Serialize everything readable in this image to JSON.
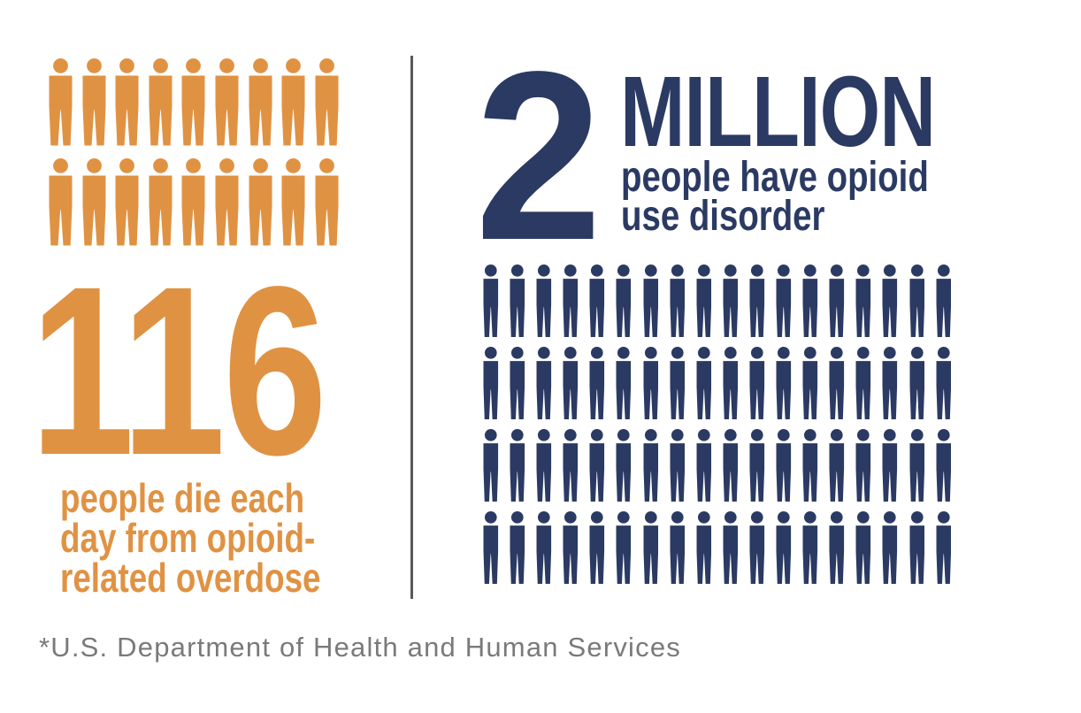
{
  "page": {
    "background": "#FFFFFF"
  },
  "left_panel": {
    "accent_color": "#E09243",
    "pictogram": {
      "rows": 2,
      "columns": 9,
      "total_icons": 18,
      "icon": "person-icon"
    },
    "stat_number": "116",
    "caption_lines": {
      "0": "people die each",
      "1": "day from opioid-",
      "2": "related overdose"
    }
  },
  "divider": {
    "color": "#58595B"
  },
  "right_panel": {
    "accent_color": "#2B3A63",
    "stat_number": "2",
    "stat_unit": "MILLION",
    "caption_lines": {
      "0": "people have opioid",
      "1": "use disorder"
    },
    "pictogram": {
      "rows": 4,
      "columns": 18,
      "total_icons": 72,
      "icon": "person-icon"
    }
  },
  "footer": {
    "source_note": "*U.S. Department of Health and Human Services"
  },
  "chart_data": {
    "type": "pictogram",
    "title": "",
    "series": [
      {
        "name": "people die each day from opioid-related overdose",
        "value": 116,
        "value_label": "116",
        "unit": "people per day",
        "icons_shown": 18,
        "color": "#E09243"
      },
      {
        "name": "people have opioid use disorder",
        "value": 2000000,
        "value_label": "2 MILLION",
        "unit": "people",
        "icons_shown": 72,
        "color": "#2B3A63"
      }
    ],
    "source": "*U.S. Department of Health and Human Services",
    "legend_position": "none",
    "grid": false
  }
}
